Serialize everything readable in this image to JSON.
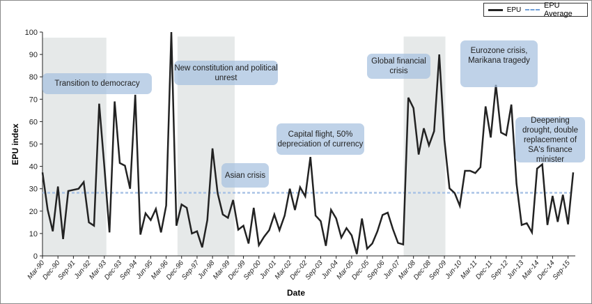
{
  "chart_data": {
    "type": "line",
    "title": "",
    "xlabel": "Date",
    "ylabel": "EPU index",
    "ylim": [
      0,
      100
    ],
    "yticks": [
      0,
      10,
      20,
      30,
      40,
      50,
      60,
      70,
      80,
      90,
      100
    ],
    "xtick_labels": [
      "Mar-90",
      "Dec-90",
      "Sep-91",
      "Jun-92",
      "Mar-93",
      "Dec-93",
      "Sep-94",
      "Jun-95",
      "Mar-96",
      "Dec-96",
      "Sep-97",
      "Jun-98",
      "Mar-99",
      "Dec-99",
      "Sep-00",
      "Jun-01",
      "Mar-02",
      "Dec-02",
      "Sep-03",
      "Jun-04",
      "Mar-05",
      "Dec-05",
      "Sep-06",
      "Jun-07",
      "Mar-08",
      "Dec-08",
      "Sep-09",
      "Jun-10",
      "Mar-11",
      "Dec-11",
      "Sep-12",
      "Jun-13",
      "Mar-14",
      "Dec-14",
      "Sep-15"
    ],
    "frequency": "quarterly, starting Mar-90",
    "legend": {
      "position": "top-right",
      "entries": [
        "EPU",
        "EPU Average"
      ]
    },
    "series": [
      {
        "name": "EPU",
        "color": "#222222",
        "values": [
          37.3,
          20.7,
          11,
          31,
          7.5,
          29,
          29.5,
          30,
          33,
          15,
          13.5,
          68,
          40,
          10.5,
          69,
          41.5,
          40.3,
          30,
          72,
          9.5,
          19,
          16,
          21,
          10.5,
          22.5,
          100,
          13.5,
          23,
          21.5,
          10,
          11,
          3.8,
          16,
          48,
          28,
          18.5,
          17,
          25,
          11.7,
          13.5,
          5.5,
          21.5,
          4.8,
          8.5,
          11.5,
          18.5,
          11.5,
          18,
          30,
          20.5,
          30.7,
          26.6,
          44.2,
          18,
          15.5,
          4.5,
          20.6,
          16.7,
          8.2,
          12.4,
          9.2,
          0.8,
          16.7,
          3.2,
          5.5,
          11,
          18.3,
          19.3,
          12,
          5.8,
          5.1,
          70.7,
          66,
          45.3,
          57,
          49.4,
          55.7,
          90,
          52,
          30.2,
          28.1,
          22.4,
          38,
          38,
          37,
          39.6,
          66.8,
          52.9,
          76.4,
          55.1,
          53.9,
          67.6,
          32.3,
          13.8,
          14.6,
          10.5,
          39,
          40.9,
          13.8,
          26.8,
          15.2,
          27.3,
          14.1,
          37.3
        ]
      },
      {
        "name": "EPU Average",
        "color": "#a9c3e6",
        "value": 28.2
      }
    ],
    "shaded_periods": [
      {
        "start_index": 0,
        "end_index": 12.4,
        "top": 97.5
      },
      {
        "start_index": 26.2,
        "end_index": 37.3,
        "top": 98
      },
      {
        "start_index": 70.1,
        "end_index": 78.2,
        "top": 98
      }
    ],
    "annotations": [
      "Transition to democracy",
      "New constitution and political unrest",
      "Asian crisis",
      "Capital flight, 50% depreciation of currency",
      "Global financial crisis",
      "Eurozone crisis, Marikana tragedy",
      "Deepening drought, double replacement of SA's finance minister"
    ]
  }
}
